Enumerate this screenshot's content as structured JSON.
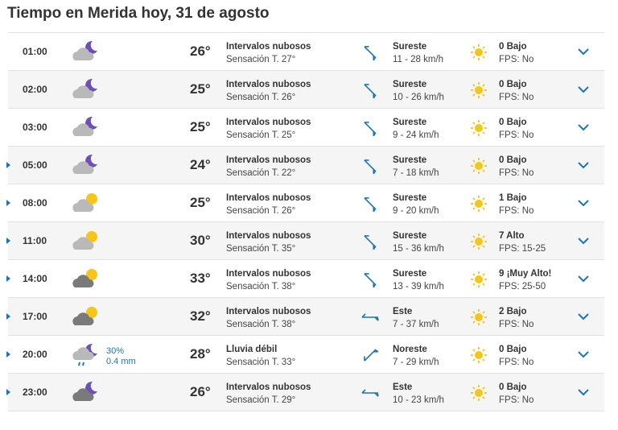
{
  "title": "Tiempo en Merida hoy, 31 de agosto",
  "colors": {
    "accent": "#1a75b8",
    "sun": "#f5c518",
    "moon": "#6b4fbb",
    "cloud_light": "#b9b9b9",
    "cloud_dark": "#7a7a7a"
  },
  "rows": [
    {
      "hour": "01:00",
      "icon": "cloud-moon-icon",
      "temp": "26°",
      "desc": "Intervalos nubosos",
      "feel": "Sensación T. 27°",
      "wind_dir": "Sureste",
      "wind_speed": "11 - 28 km/h",
      "uv": "0 Bajo",
      "fps": "FPS: No",
      "expandable": false
    },
    {
      "hour": "02:00",
      "icon": "cloud-moon-icon",
      "temp": "25°",
      "desc": "Intervalos nubosos",
      "feel": "Sensación T. 26°",
      "wind_dir": "Sureste",
      "wind_speed": "10 - 26 km/h",
      "uv": "0 Bajo",
      "fps": "FPS: No",
      "expandable": false
    },
    {
      "hour": "03:00",
      "icon": "cloud-moon-icon",
      "temp": "25°",
      "desc": "Intervalos nubosos",
      "feel": "Sensación T. 25°",
      "wind_dir": "Sureste",
      "wind_speed": "9 - 24 km/h",
      "uv": "0 Bajo",
      "fps": "FPS: No",
      "expandable": false
    },
    {
      "hour": "05:00",
      "icon": "cloud-moon-icon",
      "temp": "24°",
      "desc": "Intervalos nubosos",
      "feel": "Sensación T. 22°",
      "wind_dir": "Sureste",
      "wind_speed": "7 - 18 km/h",
      "uv": "0 Bajo",
      "fps": "FPS: No",
      "expandable": true
    },
    {
      "hour": "08:00",
      "icon": "cloud-sun-icon",
      "temp": "25°",
      "desc": "Intervalos nubosos",
      "feel": "Sensación T. 26°",
      "wind_dir": "Sureste",
      "wind_speed": "9 - 20 km/h",
      "uv": "1 Bajo",
      "fps": "FPS: No",
      "expandable": true
    },
    {
      "hour": "11:00",
      "icon": "cloud-sun-icon",
      "temp": "30°",
      "desc": "Intervalos nubosos",
      "feel": "Sensación T. 35°",
      "wind_dir": "Sureste",
      "wind_speed": "15 - 36 km/h",
      "uv": "7 Alto",
      "fps": "FPS: 15-25",
      "expandable": true
    },
    {
      "hour": "14:00",
      "icon": "dark-cloud-sun-icon",
      "temp": "33°",
      "desc": "Intervalos nubosos",
      "feel": "Sensación T. 38°",
      "wind_dir": "Sureste",
      "wind_speed": "13 - 39 km/h",
      "uv": "9 ¡Muy Alto!",
      "fps": "FPS: 25-50",
      "expandable": true
    },
    {
      "hour": "17:00",
      "icon": "dark-cloud-sun-icon",
      "temp": "32°",
      "desc": "Intervalos nubosos",
      "feel": "Sensación T. 38°",
      "wind_dir": "Este",
      "wind_speed": "7 - 37 km/h",
      "uv": "2 Bajo",
      "fps": "FPS: No",
      "expandable": true
    },
    {
      "hour": "20:00",
      "icon": "rain-cloud-moon-icon",
      "temp": "28°",
      "desc": "Lluvia débil",
      "feel": "Sensación T. 33°",
      "wind_dir": "Noreste",
      "wind_speed": "7 - 29 km/h",
      "uv": "0 Bajo",
      "fps": "FPS: No",
      "rain_prob": "30%",
      "rain_amount": "0.4 mm",
      "expandable": true
    },
    {
      "hour": "23:00",
      "icon": "dark-cloud-moon-icon",
      "temp": "26°",
      "desc": "Intervalos nubosos",
      "feel": "Sensación T. 29°",
      "wind_dir": "Este",
      "wind_speed": "10 - 23 km/h",
      "uv": "0 Bajo",
      "fps": "FPS: No",
      "expandable": true
    }
  ]
}
